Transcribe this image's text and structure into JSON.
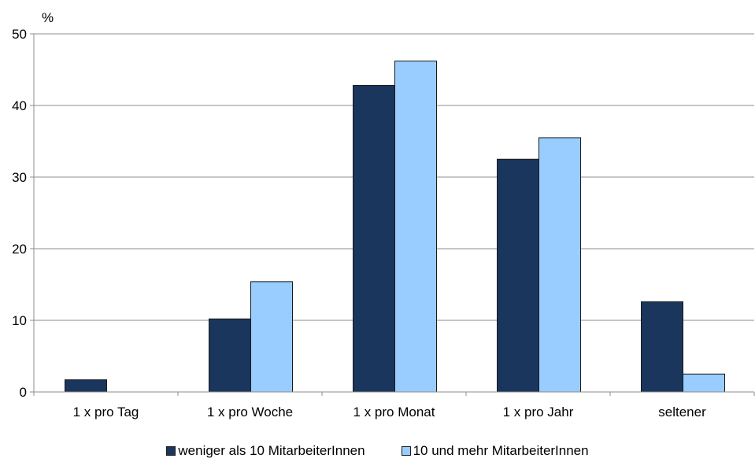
{
  "chart_data": {
    "type": "bar",
    "title": "",
    "ylabel": "%",
    "xlabel": "",
    "ylim": [
      0,
      50
    ],
    "yticks": [
      0,
      10,
      20,
      30,
      40,
      50
    ],
    "grid": true,
    "legend_position": "bottom",
    "categories": [
      "1 x pro Tag",
      "1 x pro Woche",
      "1 x pro Monat",
      "1 x pro Jahr",
      "seltener"
    ],
    "series": [
      {
        "name": "weniger als 10 MitarbeiterInnen",
        "color": "#1b365d",
        "values": [
          1.7,
          10.2,
          42.8,
          32.5,
          12.6
        ]
      },
      {
        "name": "10 und mehr MitarbeiterInnen",
        "color": "#99ccff",
        "values": [
          0,
          15.4,
          46.2,
          35.5,
          2.5
        ]
      }
    ]
  }
}
